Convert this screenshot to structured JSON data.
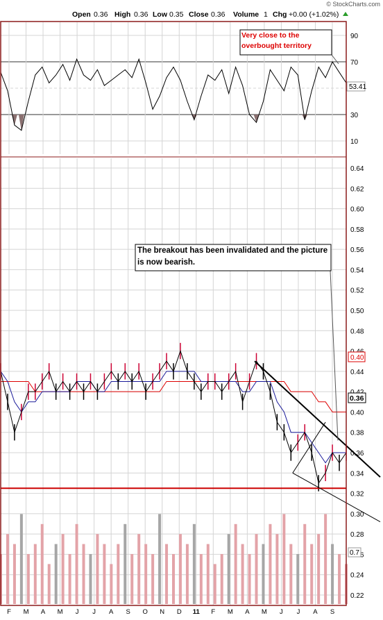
{
  "watermark": "© StockCharts.com",
  "quote": {
    "open_label": "Open",
    "open": "0.36",
    "high_label": "High",
    "high": "0.36",
    "low_label": "Low",
    "low": "0.35",
    "close_label": "Close",
    "close": "0.36",
    "volume_label": "Volume",
    "volume": "1",
    "chg_label": "Chg",
    "chg": "+0.00 (+1.02%)"
  },
  "colors": {
    "frame": "#8b1a1a",
    "grid": "#d4d4d4",
    "price_up": "#cc0033",
    "price_down": "#000000",
    "ma_fast": "#1a1a99",
    "ma_slow": "#dd0000",
    "support": "#cc0000",
    "trend": "#000000",
    "annotation_red": "#dd0000",
    "volume": "#e3a3a8",
    "volume_gray": "#a6a6a6",
    "rsi_fill": "#8a7070",
    "chg_arrow": "#2a9d2a"
  },
  "chart_data": [
    {
      "type": "line",
      "name": "rsi-panel",
      "ylim": [
        0,
        100
      ],
      "yticks": [
        10,
        30,
        50,
        70,
        90
      ],
      "overbought": 70,
      "oversold": 30,
      "midline": 50,
      "last_value": "53.41",
      "annotation": "Very close to the overbought territory",
      "x": [
        0,
        2,
        4,
        6,
        8,
        10,
        12,
        14,
        16,
        18,
        20,
        22,
        24,
        26,
        28,
        30,
        32,
        34,
        36,
        38,
        40,
        42,
        44,
        46,
        48,
        50,
        52,
        54,
        56,
        58,
        60,
        62,
        64,
        66,
        68,
        70,
        72,
        74,
        76,
        78,
        80,
        82,
        84,
        86,
        88,
        90,
        92,
        94,
        96,
        98,
        100
      ],
      "values": [
        62,
        48,
        22,
        18,
        40,
        60,
        66,
        54,
        60,
        68,
        56,
        72,
        60,
        56,
        64,
        52,
        56,
        60,
        64,
        58,
        72,
        54,
        34,
        44,
        58,
        66,
        56,
        40,
        26,
        44,
        60,
        56,
        64,
        46,
        66,
        52,
        30,
        24,
        40,
        64,
        56,
        48,
        66,
        60,
        26,
        48,
        66,
        58,
        70,
        62,
        54
      ]
    },
    {
      "type": "line",
      "name": "price-panel",
      "ylim": [
        0.21,
        0.66
      ],
      "yticks": [
        0.22,
        0.24,
        0.26,
        0.28,
        0.3,
        0.32,
        0.34,
        0.36,
        0.38,
        0.4,
        0.42,
        0.44,
        0.46,
        0.48,
        0.5,
        0.52,
        0.54,
        0.56,
        0.58,
        0.6,
        0.62,
        0.64
      ],
      "x_labels": [
        "F",
        "M",
        "A",
        "M",
        "J",
        "J",
        "A",
        "S",
        "O",
        "N",
        "D",
        "11",
        "F",
        "M",
        "A",
        "M",
        "J",
        "J",
        "A",
        "S"
      ],
      "price_badge": "0.36",
      "ma_badge": "0.40",
      "support_level": 0.325,
      "annotation": "The breakout has been invalidated and the picture is now bearish.",
      "x": [
        0,
        2,
        4,
        6,
        8,
        10,
        12,
        14,
        16,
        18,
        20,
        22,
        24,
        26,
        28,
        30,
        32,
        34,
        36,
        38,
        40,
        42,
        44,
        46,
        48,
        50,
        52,
        54,
        56,
        58,
        60,
        62,
        64,
        66,
        68,
        70,
        72,
        74,
        76,
        78,
        80,
        82,
        84,
        86,
        88,
        90,
        92,
        94,
        96,
        98,
        100
      ],
      "close": [
        0.44,
        0.41,
        0.38,
        0.4,
        0.42,
        0.42,
        0.43,
        0.44,
        0.42,
        0.43,
        0.42,
        0.43,
        0.42,
        0.43,
        0.42,
        0.43,
        0.44,
        0.43,
        0.44,
        0.43,
        0.44,
        0.42,
        0.43,
        0.44,
        0.45,
        0.44,
        0.46,
        0.44,
        0.43,
        0.42,
        0.43,
        0.43,
        0.42,
        0.43,
        0.44,
        0.41,
        0.43,
        0.45,
        0.44,
        0.42,
        0.39,
        0.38,
        0.36,
        0.37,
        0.38,
        0.36,
        0.33,
        0.34,
        0.36,
        0.35,
        0.36
      ],
      "ma_fast": [
        0.44,
        0.43,
        0.41,
        0.4,
        0.41,
        0.41,
        0.42,
        0.42,
        0.42,
        0.42,
        0.42,
        0.43,
        0.43,
        0.43,
        0.42,
        0.42,
        0.43,
        0.43,
        0.43,
        0.43,
        0.43,
        0.43,
        0.43,
        0.43,
        0.44,
        0.44,
        0.44,
        0.44,
        0.44,
        0.43,
        0.43,
        0.43,
        0.43,
        0.43,
        0.43,
        0.42,
        0.42,
        0.43,
        0.43,
        0.43,
        0.41,
        0.4,
        0.38,
        0.38,
        0.38,
        0.37,
        0.36,
        0.35,
        0.36,
        0.36,
        0.36
      ],
      "ma_slow": [
        0.43,
        0.43,
        0.43,
        0.43,
        0.43,
        0.42,
        0.42,
        0.42,
        0.42,
        0.42,
        0.42,
        0.42,
        0.42,
        0.42,
        0.42,
        0.42,
        0.42,
        0.42,
        0.42,
        0.42,
        0.42,
        0.42,
        0.42,
        0.42,
        0.43,
        0.43,
        0.43,
        0.43,
        0.43,
        0.43,
        0.43,
        0.43,
        0.43,
        0.43,
        0.43,
        0.43,
        0.43,
        0.43,
        0.43,
        0.43,
        0.43,
        0.43,
        0.42,
        0.42,
        0.42,
        0.42,
        0.41,
        0.41,
        0.4,
        0.4,
        0.4
      ],
      "volume_axis_value": "0.7",
      "volume": [
        5,
        7,
        6,
        9,
        5,
        6,
        8,
        4,
        6,
        7,
        5,
        8,
        6,
        5,
        7,
        6,
        4,
        6,
        8,
        5,
        7,
        6,
        5,
        9,
        6,
        5,
        7,
        6,
        8,
        5,
        6,
        4,
        5,
        7,
        8,
        6,
        5,
        7,
        6,
        8,
        7,
        9,
        6,
        5,
        8,
        6,
        7,
        9,
        6,
        5,
        4
      ]
    }
  ]
}
